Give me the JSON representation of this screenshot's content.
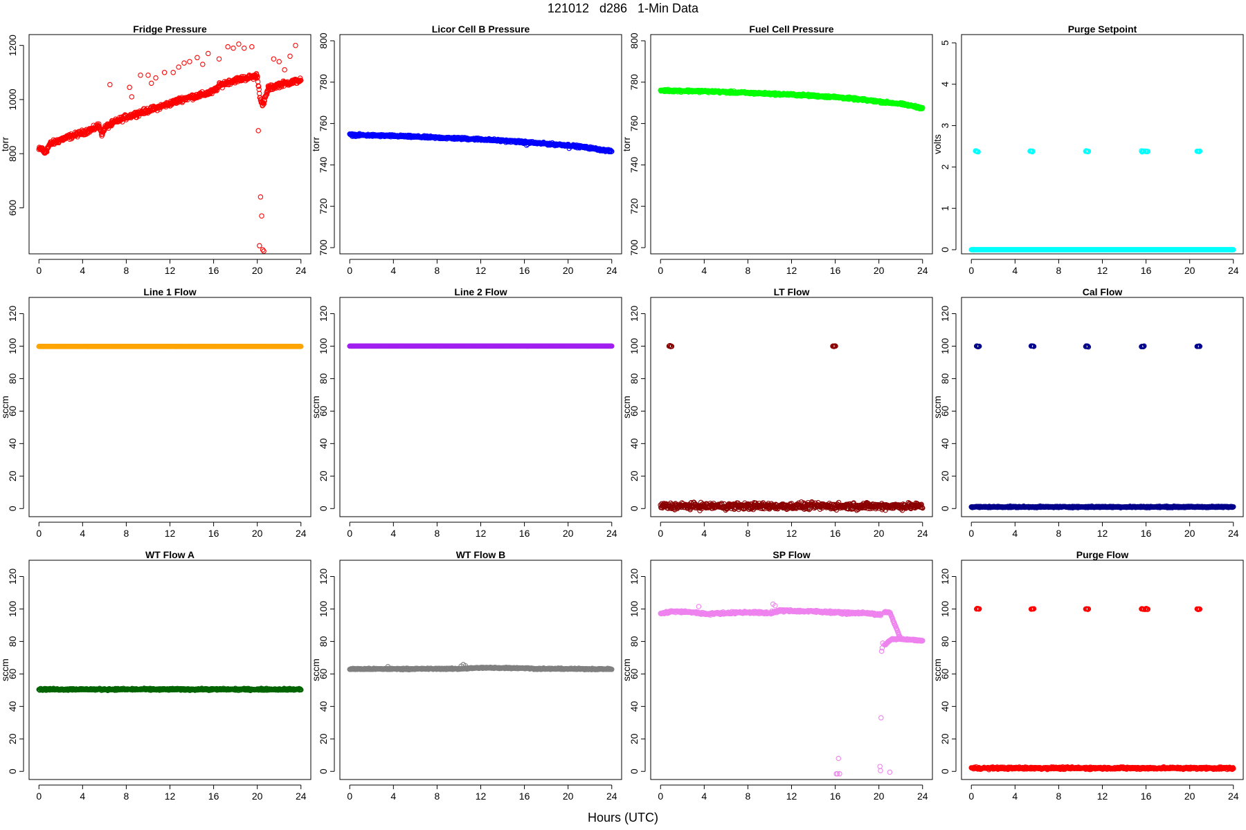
{
  "header": {
    "title": "121012   d286   1-Min Data",
    "x_axis_title": "Hours (UTC)"
  },
  "chart_data": [
    {
      "type": "scatter",
      "title": "Fridge Pressure",
      "ylabel": "torr",
      "xlim": [
        0,
        24
      ],
      "ylim": [
        430,
        1240
      ],
      "xticks": [
        0,
        4,
        8,
        12,
        16,
        20,
        24
      ],
      "yticks": [
        600,
        800,
        1000,
        1200
      ],
      "color": "#ff0000",
      "series": [
        {
          "kind": "trend",
          "x": [
            0,
            0.3,
            0.5,
            1,
            2,
            3,
            4,
            5,
            5.5,
            5.8,
            6,
            7,
            8,
            9,
            10,
            11,
            12,
            13,
            14,
            15,
            16,
            16.5,
            17,
            18,
            19,
            19.8,
            20,
            20.2,
            20.5,
            21,
            22,
            23,
            24
          ],
          "y": [
            815,
            820,
            800,
            835,
            852,
            865,
            878,
            892,
            905,
            870,
            895,
            918,
            935,
            948,
            960,
            972,
            985,
            1000,
            1010,
            1018,
            1030,
            1050,
            1060,
            1072,
            1080,
            1085,
            1090,
            1020,
            975,
            1040,
            1055,
            1063,
            1072
          ],
          "spread": 14
        },
        {
          "kind": "points",
          "x": [
            6.5,
            8.3,
            8.5,
            9.3,
            10,
            10.3,
            10.7,
            11.5,
            12.3,
            12.8,
            13.3,
            13.8,
            14.5,
            15,
            15.5,
            16.5,
            17.3,
            17.8,
            18.3,
            18.8,
            19.5,
            20.1,
            20.2,
            20.3,
            20.4,
            20.5,
            20.6,
            21,
            21.5,
            22,
            22.5,
            23,
            23.5
          ],
          "y": [
            1055,
            1045,
            1010,
            1090,
            1090,
            1060,
            1080,
            1100,
            1100,
            1120,
            1135,
            1140,
            1155,
            1130,
            1170,
            1150,
            1195,
            1190,
            1205,
            1190,
            1195,
            885,
            460,
            640,
            570,
            445,
            440,
            1050,
            1150,
            1140,
            1110,
            1160,
            1200
          ]
        }
      ]
    },
    {
      "type": "scatter",
      "title": "Licor Cell B Pressure",
      "ylabel": "torr",
      "xlim": [
        0,
        24
      ],
      "ylim": [
        697,
        803
      ],
      "xticks": [
        0,
        4,
        8,
        12,
        16,
        20,
        24
      ],
      "yticks": [
        700,
        720,
        740,
        760,
        780,
        800
      ],
      "color": "#0000ff",
      "series": [
        {
          "kind": "trend",
          "x": [
            0,
            4,
            8,
            12,
            16,
            18,
            20,
            22,
            24
          ],
          "y": [
            754.5,
            754,
            753.2,
            752.4,
            751,
            750.2,
            749.5,
            748.2,
            746.5
          ],
          "spread": 0.8
        },
        {
          "kind": "points",
          "x": [
            16.2,
            16.3,
            20.1,
            20.8
          ],
          "y": [
            749.5,
            750,
            748,
            749
          ]
        }
      ]
    },
    {
      "type": "scatter",
      "title": "Fuel Cell Pressure",
      "ylabel": "torr",
      "xlim": [
        0,
        24
      ],
      "ylim": [
        697,
        803
      ],
      "xticks": [
        0,
        4,
        8,
        12,
        16,
        20,
        24
      ],
      "yticks": [
        700,
        720,
        740,
        760,
        780,
        800
      ],
      "color": "#00ff00",
      "series": [
        {
          "kind": "trend",
          "x": [
            0,
            4,
            8,
            12,
            16,
            18,
            20,
            22,
            24
          ],
          "y": [
            776,
            775.6,
            774.8,
            774,
            772.8,
            771.8,
            770.6,
            769.5,
            767.5
          ],
          "spread": 0.8
        }
      ]
    },
    {
      "type": "scatter",
      "title": "Purge Setpoint",
      "ylabel": "volts",
      "xlim": [
        0,
        24
      ],
      "ylim": [
        -0.1,
        5.2
      ],
      "xticks": [
        0,
        4,
        8,
        12,
        16,
        20,
        24
      ],
      "yticks": [
        0,
        1,
        2,
        3,
        4,
        5
      ],
      "color": "#00ffff",
      "series": [
        {
          "kind": "trend",
          "x": [
            0,
            24
          ],
          "y": [
            0,
            0
          ],
          "spread": 0
        },
        {
          "kind": "clusters",
          "x": [
            0.5,
            5.5,
            10.6,
            15.7,
            20.8
          ],
          "y": 2.38,
          "count": [
            1,
            1,
            1,
            2,
            1
          ]
        }
      ]
    },
    {
      "type": "scatter",
      "title": "Line 1 Flow",
      "ylabel": "sccm",
      "xlim": [
        0,
        24
      ],
      "ylim": [
        -5,
        130
      ],
      "xticks": [
        0,
        4,
        8,
        12,
        16,
        20,
        24
      ],
      "yticks": [
        0,
        20,
        40,
        60,
        80,
        100,
        120
      ],
      "color": "#ffa500",
      "series": [
        {
          "kind": "trend",
          "x": [
            0,
            24
          ],
          "y": [
            99.8,
            99.8
          ],
          "spread": 0
        }
      ]
    },
    {
      "type": "scatter",
      "title": "Line 2 Flow",
      "ylabel": "sccm",
      "xlim": [
        0,
        24
      ],
      "ylim": [
        -5,
        130
      ],
      "xticks": [
        0,
        4,
        8,
        12,
        16,
        20,
        24
      ],
      "yticks": [
        0,
        20,
        40,
        60,
        80,
        100,
        120
      ],
      "color": "#a020f0",
      "series": [
        {
          "kind": "trend",
          "x": [
            0,
            24
          ],
          "y": [
            100,
            100
          ],
          "spread": 0
        }
      ]
    },
    {
      "type": "scatter",
      "title": "LT Flow",
      "ylabel": "sccm",
      "xlim": [
        0,
        24
      ],
      "ylim": [
        -5,
        130
      ],
      "xticks": [
        0,
        4,
        8,
        12,
        16,
        20,
        24
      ],
      "yticks": [
        0,
        20,
        40,
        60,
        80,
        100,
        120
      ],
      "color": "#8b0000",
      "series": [
        {
          "kind": "trend",
          "x": [
            0,
            24
          ],
          "y": [
            1.5,
            1.5
          ],
          "spread": 3
        },
        {
          "kind": "clusters",
          "x": [
            0.9,
            15.9
          ],
          "y": 100,
          "count": [
            1,
            1
          ]
        }
      ]
    },
    {
      "type": "scatter",
      "title": "Cal Flow",
      "ylabel": "sccm",
      "xlim": [
        0,
        24
      ],
      "ylim": [
        -5,
        130
      ],
      "xticks": [
        0,
        4,
        8,
        12,
        16,
        20,
        24
      ],
      "yticks": [
        0,
        20,
        40,
        60,
        80,
        100,
        120
      ],
      "color": "#00008b",
      "series": [
        {
          "kind": "trend",
          "x": [
            0,
            24
          ],
          "y": [
            1,
            1
          ],
          "spread": 0.6
        },
        {
          "kind": "clusters",
          "x": [
            0.6,
            5.6,
            10.6,
            15.7,
            20.8
          ],
          "y": 100,
          "count": [
            1,
            1,
            1,
            1,
            1
          ]
        }
      ]
    },
    {
      "type": "scatter",
      "title": "WT Flow A",
      "ylabel": "sccm",
      "xlim": [
        0,
        24
      ],
      "ylim": [
        -5,
        130
      ],
      "xticks": [
        0,
        4,
        8,
        12,
        16,
        20,
        24
      ],
      "yticks": [
        0,
        20,
        40,
        60,
        80,
        100,
        120
      ],
      "color": "#006400",
      "series": [
        {
          "kind": "trend",
          "x": [
            0,
            24
          ],
          "y": [
            50.5,
            50.5
          ],
          "spread": 0.8
        }
      ]
    },
    {
      "type": "scatter",
      "title": "WT Flow B",
      "ylabel": "sccm",
      "xlim": [
        0,
        24
      ],
      "ylim": [
        -5,
        130
      ],
      "xticks": [
        0,
        4,
        8,
        12,
        16,
        20,
        24
      ],
      "yticks": [
        0,
        20,
        40,
        60,
        80,
        100,
        120
      ],
      "color": "#808080",
      "series": [
        {
          "kind": "trend",
          "x": [
            0,
            10,
            12,
            16,
            17,
            24
          ],
          "y": [
            63,
            63.2,
            63.8,
            63.6,
            63.2,
            63
          ],
          "spread": 0.6
        },
        {
          "kind": "points",
          "x": [
            3.5,
            10.2,
            10.4,
            10.6
          ],
          "y": [
            64.5,
            64.8,
            65.8,
            65
          ]
        }
      ]
    },
    {
      "type": "scatter",
      "title": "SP Flow",
      "ylabel": "sccm",
      "xlim": [
        0,
        24
      ],
      "ylim": [
        -5,
        130
      ],
      "xticks": [
        0,
        4,
        8,
        12,
        16,
        20,
        24
      ],
      "yticks": [
        0,
        20,
        40,
        60,
        80,
        100,
        120
      ],
      "color": "#ee82ee",
      "series": [
        {
          "kind": "trend",
          "x": [
            0,
            1,
            3,
            4,
            8,
            10,
            11,
            14,
            16,
            17,
            19,
            19.8,
            20.2
          ],
          "y": [
            97,
            98.5,
            98,
            97,
            98,
            97.5,
            99,
            98.5,
            98,
            97.5,
            97.5,
            96.5,
            96.5
          ],
          "spread": 1
        },
        {
          "kind": "trend",
          "x": [
            20.5,
            21,
            22,
            23,
            24
          ],
          "y": [
            98,
            98,
            81.5,
            81,
            80.5
          ],
          "spread": 0.6
        },
        {
          "kind": "trend",
          "x": [
            20.6,
            20.9,
            21.2,
            22,
            24
          ],
          "y": [
            78,
            80,
            81.5,
            81.5,
            80.5
          ],
          "spread": 0.5
        },
        {
          "kind": "points",
          "x": [
            3.5,
            10.3,
            10.5,
            16.1,
            16.2,
            16.3,
            16.4,
            20.1,
            20.15,
            20.2,
            20.25,
            20.3,
            20.35,
            20.5,
            21
          ],
          "y": [
            101.5,
            103,
            102,
            -1.5,
            -1.5,
            8,
            -1.5,
            3,
            0.5,
            33,
            74,
            76,
            79,
            78,
            -0.5
          ]
        }
      ]
    },
    {
      "type": "scatter",
      "title": "Purge Flow",
      "ylabel": "sccm",
      "xlim": [
        0,
        24
      ],
      "ylim": [
        -5,
        130
      ],
      "xticks": [
        0,
        4,
        8,
        12,
        16,
        20,
        24
      ],
      "yticks": [
        0,
        20,
        40,
        60,
        80,
        100,
        120
      ],
      "color": "#ff0000",
      "series": [
        {
          "kind": "trend",
          "x": [
            0,
            24
          ],
          "y": [
            2,
            2
          ],
          "spread": 1
        },
        {
          "kind": "clusters",
          "x": [
            0.6,
            5.6,
            10.6,
            15.7,
            20.8
          ],
          "y": 100,
          "count": [
            1,
            1,
            1,
            2,
            1
          ]
        }
      ]
    }
  ]
}
